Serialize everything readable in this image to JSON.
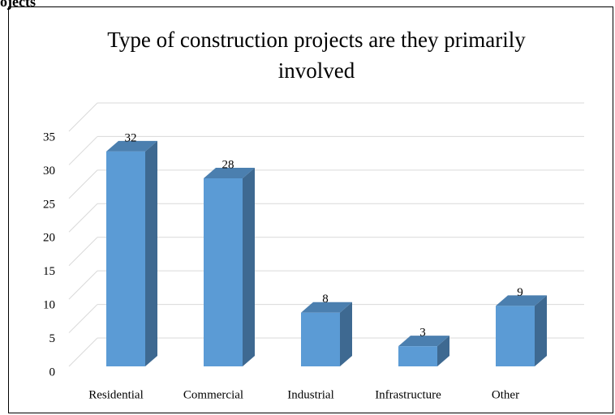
{
  "heading": "ojects",
  "chart_data": {
    "type": "bar3d",
    "title": "Type of construction projects are they primarily involved",
    "categories": [
      "Residential",
      "Commercial",
      "Industrial",
      "Infrastructure",
      "Other"
    ],
    "values": [
      32,
      28,
      8,
      3,
      9
    ],
    "color": "#5b9bd5",
    "ylim": [
      0,
      35
    ],
    "yticks": [
      0,
      5,
      10,
      15,
      20,
      25,
      30,
      35
    ],
    "grid": true
  }
}
